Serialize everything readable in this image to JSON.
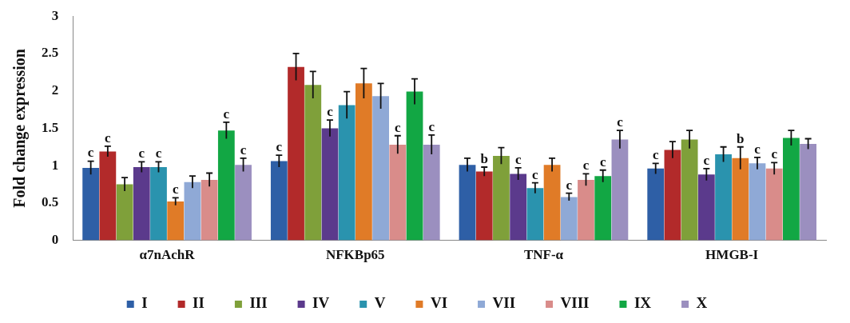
{
  "chart_data": {
    "type": "bar",
    "ylabel": "Fold change expression",
    "categories": [
      "α7nAchR",
      "NFKBp65",
      "TNF-α",
      "HMGB-I"
    ],
    "ylim": [
      0,
      3
    ],
    "yticks": [
      0,
      0.5,
      1,
      1.5,
      2,
      2.5,
      3
    ],
    "grid": false,
    "legend": "bottom",
    "series": [
      {
        "name": "I",
        "color": "#2e5fa6",
        "values": [
          0.97,
          1.06,
          1.01,
          0.96
        ],
        "errors": [
          0.09,
          0.08,
          0.09,
          0.07
        ],
        "value_labels": [
          "c",
          "c",
          null,
          "c"
        ]
      },
      {
        "name": "II",
        "color": "#b22a2a",
        "values": [
          1.19,
          2.32,
          0.92,
          1.21
        ],
        "errors": [
          0.07,
          0.18,
          0.06,
          0.11
        ],
        "value_labels": [
          "c",
          null,
          "b",
          null
        ]
      },
      {
        "name": "III",
        "color": "#7fa03a",
        "values": [
          0.75,
          2.08,
          1.13,
          1.35
        ],
        "errors": [
          0.09,
          0.18,
          0.11,
          0.12
        ],
        "value_labels": [
          null,
          null,
          null,
          null
        ]
      },
      {
        "name": "IV",
        "color": "#5b3a8c",
        "values": [
          0.98,
          1.5,
          0.89,
          0.88
        ],
        "errors": [
          0.07,
          0.11,
          0.08,
          0.08
        ],
        "value_labels": [
          "c",
          "c",
          "c",
          "c"
        ]
      },
      {
        "name": "V",
        "color": "#2a93ae",
        "values": [
          0.98,
          1.81,
          0.7,
          1.15
        ],
        "errors": [
          0.07,
          0.18,
          0.07,
          0.1
        ],
        "value_labels": [
          "c",
          null,
          "c",
          null
        ]
      },
      {
        "name": "VI",
        "color": "#e07b27",
        "values": [
          0.52,
          2.1,
          1.01,
          1.1
        ],
        "errors": [
          0.05,
          0.2,
          0.09,
          0.15
        ],
        "value_labels": [
          "c",
          null,
          null,
          "b"
        ]
      },
      {
        "name": "VII",
        "color": "#8fa9d6",
        "values": [
          0.78,
          1.93,
          0.58,
          1.03
        ],
        "errors": [
          0.08,
          0.17,
          0.05,
          0.08
        ],
        "value_labels": [
          null,
          null,
          "c",
          "c"
        ]
      },
      {
        "name": "VIII",
        "color": "#d98c8a",
        "values": [
          0.81,
          1.28,
          0.81,
          0.96
        ],
        "errors": [
          0.09,
          0.12,
          0.08,
          0.08
        ],
        "value_labels": [
          null,
          "c",
          "c",
          "c"
        ]
      },
      {
        "name": "IX",
        "color": "#12a744",
        "values": [
          1.47,
          1.99,
          0.86,
          1.37
        ],
        "errors": [
          0.11,
          0.17,
          0.08,
          0.1
        ],
        "value_labels": [
          "c",
          null,
          "c",
          null
        ]
      },
      {
        "name": "X",
        "color": "#9b8fbf",
        "values": [
          1.01,
          1.28,
          1.35,
          1.29
        ],
        "errors": [
          0.09,
          0.13,
          0.12,
          0.07
        ],
        "value_labels": [
          "c",
          "c",
          "c",
          null
        ]
      }
    ]
  }
}
